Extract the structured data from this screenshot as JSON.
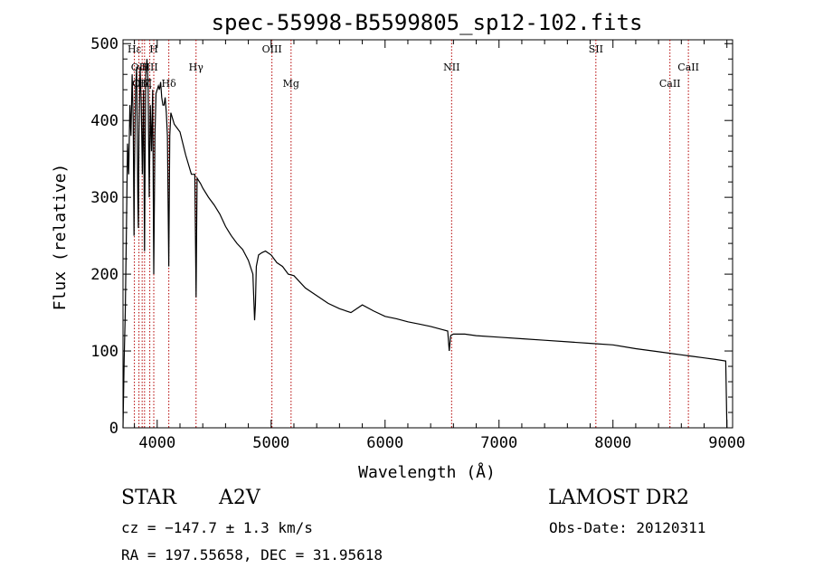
{
  "chart_data": {
    "type": "line",
    "title": "spec-55998-B5599805_sp12-102.fits",
    "xlabel": "Wavelength (Å)",
    "ylabel": "Flux (relative)",
    "xlim": [
      3700,
      9050
    ],
    "ylim": [
      0,
      505
    ],
    "xticks": [
      4000,
      5000,
      6000,
      7000,
      8000,
      9000
    ],
    "yticks": [
      0,
      100,
      200,
      300,
      400,
      500
    ],
    "series": [
      {
        "name": "flux",
        "x": [
          3700,
          3710,
          3720,
          3730,
          3740,
          3750,
          3760,
          3770,
          3780,
          3790,
          3797,
          3800,
          3810,
          3820,
          3830,
          3835,
          3840,
          3850,
          3860,
          3870,
          3880,
          3889,
          3895,
          3900,
          3910,
          3920,
          3930,
          3940,
          3950,
          3960,
          3970,
          3980,
          3990,
          4000,
          4010,
          4020,
          4030,
          4040,
          4050,
          4060,
          4070,
          4080,
          4090,
          4102,
          4110,
          4120,
          4150,
          4200,
          4250,
          4300,
          4330,
          4341,
          4350,
          4380,
          4400,
          4450,
          4500,
          4550,
          4600,
          4650,
          4700,
          4750,
          4800,
          4840,
          4855,
          4862,
          4870,
          4890,
          4920,
          4950,
          5000,
          5050,
          5100,
          5150,
          5200,
          5300,
          5400,
          5500,
          5600,
          5700,
          5800,
          5900,
          6000,
          6100,
          6200,
          6300,
          6400,
          6500,
          6550,
          6563,
          6575,
          6600,
          6700,
          6800,
          7000,
          7200,
          7400,
          7600,
          7800,
          8000,
          8200,
          8400,
          8500,
          8600,
          8700,
          8800,
          8900,
          8990,
          9000
        ],
        "y": [
          0,
          90,
          150,
          260,
          370,
          330,
          420,
          380,
          460,
          400,
          250,
          330,
          440,
          470,
          300,
          260,
          380,
          470,
          420,
          330,
          440,
          230,
          380,
          460,
          480,
          450,
          300,
          420,
          360,
          440,
          200,
          380,
          435,
          440,
          445,
          440,
          450,
          430,
          420,
          420,
          430,
          410,
          380,
          210,
          380,
          410,
          395,
          385,
          355,
          330,
          330,
          170,
          325,
          318,
          312,
          300,
          290,
          278,
          262,
          250,
          240,
          232,
          218,
          200,
          140,
          160,
          210,
          225,
          228,
          230,
          225,
          215,
          210,
          200,
          198,
          182,
          172,
          162,
          155,
          150,
          160,
          152,
          145,
          142,
          138,
          135,
          132,
          128,
          126,
          100,
          120,
          122,
          122,
          120,
          118,
          116,
          114,
          112,
          110,
          108,
          103,
          99,
          97,
          95,
          93,
          91,
          89,
          87,
          0
        ]
      }
    ],
    "lines": [
      {
        "label": "Hε",
        "x": 3800,
        "row": 0
      },
      {
        "label": "OII",
        "x": 3840,
        "row": 1
      },
      {
        "label": "OIII",
        "x": 3868,
        "row": 2
      },
      {
        "label": "Hζ",
        "x": 3889,
        "row": 2
      },
      {
        "label": "HII",
        "x": 3935,
        "row": 1
      },
      {
        "label": "H",
        "x": 3970,
        "row": 0
      },
      {
        "label": "Hδ",
        "x": 4102,
        "row": 2
      },
      {
        "label": "Hγ",
        "x": 4341,
        "row": 1
      },
      {
        "label": "OIII",
        "x": 5007,
        "row": 0
      },
      {
        "label": "Mg",
        "x": 5175,
        "row": 2
      },
      {
        "label": "NII",
        "x": 6584,
        "row": 1
      },
      {
        "label": "SII",
        "x": 7850,
        "row": 0
      },
      {
        "label": "CaII",
        "x": 8500,
        "row": 2
      },
      {
        "label": "CaII",
        "x": 8662,
        "row": 1
      }
    ],
    "line_color": "#b40000",
    "grid": false
  },
  "info": {
    "object_type": "STAR",
    "subclass": "A2V",
    "survey": "LAMOST DR2",
    "redshift_text": "cz = −147.7 ± 1.3 km/s",
    "obs_date": "Obs-Date: 20120311",
    "coords": "RA = 197.55658, DEC =  31.95618"
  }
}
